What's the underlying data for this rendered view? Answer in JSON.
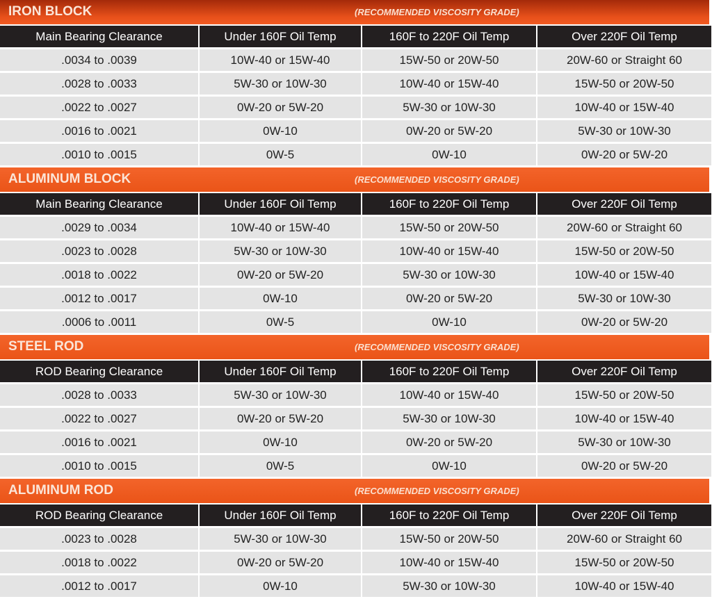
{
  "subtitle": "(RECOMMENDED VISCOSITY GRADE)",
  "sections": [
    {
      "title": "IRON BLOCK",
      "headers": [
        "Main Bearing Clearance",
        "Under 160F Oil Temp",
        "160F to 220F Oil Temp",
        "Over 220F Oil Temp"
      ],
      "rows": [
        [
          ".0034 to .0039",
          "10W-40 or 15W-40",
          "15W-50 or 20W-50",
          "20W-60 or Straight 60"
        ],
        [
          ".0028 to .0033",
          "5W-30 or 10W-30",
          "10W-40 or 15W-40",
          "15W-50 or 20W-50"
        ],
        [
          ".0022 to .0027",
          "0W-20 or 5W-20",
          "5W-30 or 10W-30",
          "10W-40 or 15W-40"
        ],
        [
          ".0016 to .0021",
          "0W-10",
          "0W-20 or 5W-20",
          "5W-30 or 10W-30"
        ],
        [
          ".0010 to .0015",
          "0W-5",
          "0W-10",
          "0W-20 or 5W-20"
        ]
      ]
    },
    {
      "title": "ALUMINUM BLOCK",
      "headers": [
        "Main Bearing Clearance",
        "Under 160F Oil Temp",
        "160F to 220F Oil Temp",
        "Over 220F Oil Temp"
      ],
      "rows": [
        [
          ".0029 to .0034",
          "10W-40 or 15W-40",
          "15W-50 or 20W-50",
          "20W-60 or Straight 60"
        ],
        [
          ".0023 to .0028",
          "5W-30 or 10W-30",
          "10W-40 or 15W-40",
          "15W-50 or 20W-50"
        ],
        [
          ".0018 to .0022",
          "0W-20 or 5W-20",
          "5W-30 or 10W-30",
          "10W-40 or 15W-40"
        ],
        [
          ".0012 to .0017",
          "0W-10",
          "0W-20 or 5W-20",
          "5W-30 or 10W-30"
        ],
        [
          ".0006 to .0011",
          "0W-5",
          "0W-10",
          "0W-20 or 5W-20"
        ]
      ]
    },
    {
      "title": "STEEL ROD",
      "headers": [
        "ROD Bearing Clearance",
        "Under 160F Oil Temp",
        "160F to 220F Oil Temp",
        "Over 220F Oil Temp"
      ],
      "rows": [
        [
          ".0028 to .0033",
          "5W-30 or 10W-30",
          "10W-40 or 15W-40",
          "15W-50 or 20W-50"
        ],
        [
          ".0022 to .0027",
          "0W-20 or 5W-20",
          "5W-30 or 10W-30",
          "10W-40 or 15W-40"
        ],
        [
          ".0016 to .0021",
          "0W-10",
          "0W-20 or 5W-20",
          "5W-30 or 10W-30"
        ],
        [
          ".0010 to .0015",
          "0W-5",
          "0W-10",
          "0W-20 or 5W-20"
        ]
      ]
    },
    {
      "title": "ALUMINUM ROD",
      "headers": [
        "ROD Bearing Clearance",
        "Under 160F Oil Temp",
        "160F to 220F Oil Temp",
        "Over 220F Oil Temp"
      ],
      "rows": [
        [
          ".0023 to .0028",
          "5W-30 or 10W-30",
          "15W-50 or 20W-50",
          "20W-60 or Straight 60"
        ],
        [
          ".0018 to .0022",
          "0W-20 or 5W-20",
          "10W-40 or 15W-40",
          "15W-50 or 20W-50"
        ],
        [
          ".0012 to .0017",
          "0W-10",
          "5W-30 or 10W-30",
          "10W-40 or 15W-40"
        ]
      ]
    }
  ],
  "colors": {
    "accent": "#ea5418",
    "header_bg": "#231f20",
    "row_bg": "#e4e4e4"
  }
}
